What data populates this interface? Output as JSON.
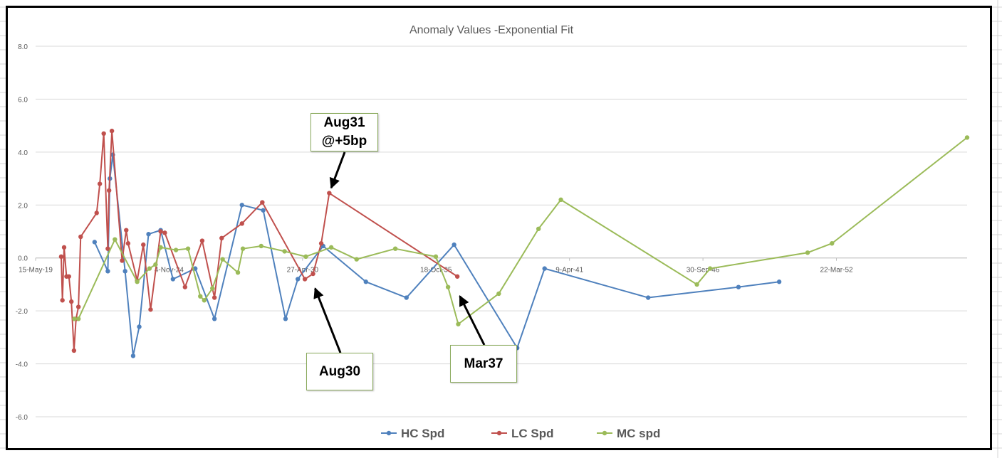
{
  "chart_data": {
    "type": "line",
    "title": "Anomaly Values -Exponential Fit",
    "x_axis": {
      "type": "date",
      "range": [
        "2019-05-15",
        "2057-08-01"
      ],
      "tick_labels": [
        "15-May-19",
        "4-Nov-24",
        "27-Apr-30",
        "18-Oct-35",
        "9-Apr-41",
        "30-Sep-46",
        "22-Mar-52"
      ],
      "tick_dates": [
        "2019-05-15",
        "2024-11-04",
        "2030-04-27",
        "2035-10-18",
        "2041-04-09",
        "2046-09-30",
        "2052-03-22"
      ]
    },
    "y_axis": {
      "range": [
        -6,
        8
      ],
      "tick_labels": [
        "8.0",
        "6.0",
        "4.0",
        "2.0",
        "0.0",
        "-2.0",
        "-4.0",
        "-6.0"
      ],
      "tick_values": [
        8,
        6,
        4,
        2,
        0,
        -2,
        -4,
        -6
      ]
    },
    "grid": "horizontal",
    "legend_position": "bottom",
    "series": [
      {
        "name": "HC Spd",
        "color": "#4f81bd",
        "points": [
          [
            "2021-10-15",
            0.6
          ],
          [
            "2022-05-01",
            -0.5
          ],
          [
            "2022-06-01",
            3.0
          ],
          [
            "2022-07-15",
            3.9
          ],
          [
            "2023-01-15",
            -0.5
          ],
          [
            "2023-05-15",
            -3.7
          ],
          [
            "2023-08-15",
            -2.6
          ],
          [
            "2024-01-01",
            0.9
          ],
          [
            "2024-07-01",
            1.05
          ],
          [
            "2025-01-01",
            -0.8
          ],
          [
            "2025-12-01",
            -0.4
          ],
          [
            "2026-09-15",
            -2.3
          ],
          [
            "2027-11-01",
            2.0
          ],
          [
            "2028-09-15",
            1.8
          ],
          [
            "2029-08-15",
            -2.3
          ],
          [
            "2030-02-15",
            -0.8
          ],
          [
            "2031-03-01",
            0.45
          ],
          [
            "2032-12-01",
            -0.9
          ],
          [
            "2034-08-01",
            -1.5
          ],
          [
            "2036-07-15",
            0.5
          ],
          [
            "2039-02-15",
            -3.4
          ],
          [
            "2040-04-01",
            -0.4
          ],
          [
            "2044-07-01",
            -1.5
          ],
          [
            "2048-03-15",
            -1.1
          ],
          [
            "2049-11-15",
            -0.9
          ]
        ]
      },
      {
        "name": "LC Spd",
        "color": "#c0504d",
        "points": [
          [
            "2020-06-01",
            0.05
          ],
          [
            "2020-06-20",
            -1.6
          ],
          [
            "2020-07-15",
            0.4
          ],
          [
            "2020-08-20",
            -0.7
          ],
          [
            "2020-09-25",
            -0.7
          ],
          [
            "2020-11-01",
            -1.65
          ],
          [
            "2020-12-10",
            -3.5
          ],
          [
            "2021-01-10",
            -2.3
          ],
          [
            "2021-02-15",
            -1.85
          ],
          [
            "2021-03-20",
            0.8
          ],
          [
            "2021-11-15",
            1.7
          ],
          [
            "2022-01-01",
            2.8
          ],
          [
            "2022-03-01",
            4.7
          ],
          [
            "2022-05-01",
            0.35
          ],
          [
            "2022-05-20",
            2.55
          ],
          [
            "2022-07-01",
            4.8
          ],
          [
            "2022-12-01",
            -0.1
          ],
          [
            "2023-02-01",
            1.05
          ],
          [
            "2023-03-01",
            0.55
          ],
          [
            "2023-07-15",
            -0.85
          ],
          [
            "2023-10-15",
            0.5
          ],
          [
            "2024-02-01",
            -1.95
          ],
          [
            "2024-07-01",
            1.0
          ],
          [
            "2024-09-01",
            0.95
          ],
          [
            "2025-07-01",
            -1.1
          ],
          [
            "2026-03-15",
            0.65
          ],
          [
            "2026-09-15",
            -1.5
          ],
          [
            "2027-01-01",
            0.75
          ],
          [
            "2027-11-01",
            1.3
          ],
          [
            "2028-09-01",
            2.1
          ],
          [
            "2030-06-01",
            -0.8
          ],
          [
            "2030-10-01",
            -0.6
          ],
          [
            "2031-02-01",
            0.55
          ],
          [
            "2031-06-01",
            2.45
          ],
          [
            "2036-09-01",
            -0.7
          ]
        ]
      },
      {
        "name": "MC spd",
        "color": "#9bbb59",
        "points": [
          [
            "2020-12-15",
            -2.3
          ],
          [
            "2021-02-15",
            -2.3
          ],
          [
            "2022-08-15",
            0.7
          ],
          [
            "2023-07-15",
            -0.9
          ],
          [
            "2024-01-15",
            -0.4
          ],
          [
            "2024-04-15",
            -0.25
          ],
          [
            "2024-07-01",
            0.4
          ],
          [
            "2025-02-15",
            0.3
          ],
          [
            "2025-08-15",
            0.35
          ],
          [
            "2026-02-15",
            -1.45
          ],
          [
            "2026-04-15",
            -1.6
          ],
          [
            "2026-08-15",
            -1.15
          ],
          [
            "2027-01-15",
            -0.05
          ],
          [
            "2027-09-01",
            -0.55
          ],
          [
            "2027-11-15",
            0.35
          ],
          [
            "2028-08-15",
            0.45
          ],
          [
            "2029-08-01",
            0.25
          ],
          [
            "2030-06-15",
            0.05
          ],
          [
            "2031-07-01",
            0.4
          ],
          [
            "2032-07-15",
            -0.05
          ],
          [
            "2034-02-15",
            0.35
          ],
          [
            "2035-10-15",
            0.05
          ],
          [
            "2036-04-15",
            -1.1
          ],
          [
            "2036-09-15",
            -2.5
          ],
          [
            "2038-05-15",
            -1.35
          ],
          [
            "2040-01-01",
            1.1
          ],
          [
            "2040-12-01",
            2.2
          ],
          [
            "2046-07-01",
            -1.0
          ],
          [
            "2047-01-15",
            -0.4
          ],
          [
            "2051-01-15",
            0.2
          ],
          [
            "2052-01-15",
            0.55
          ],
          [
            "2057-08-01",
            4.55
          ]
        ]
      }
    ],
    "annotations": [
      {
        "text": "Aug31\n@+5bp",
        "target": [
          "2031-06-01",
          2.45
        ]
      },
      {
        "text": "Aug30",
        "target": [
          "2030-10-01",
          -0.95
        ]
      },
      {
        "text": "Mar37",
        "target": [
          "2036-09-01",
          -1.25
        ]
      }
    ]
  }
}
